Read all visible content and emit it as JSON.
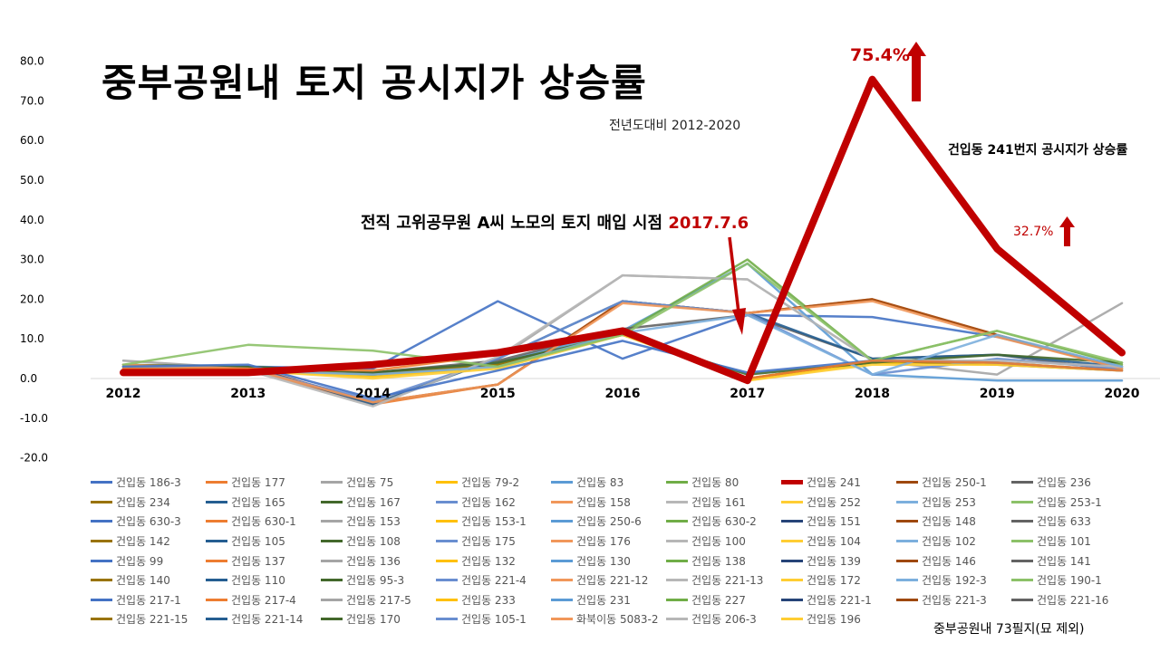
{
  "title": "중부공원내 토지 공시지가 상승률",
  "subtitle": "전년도대비 2012-2020",
  "annotations": {
    "series_241_label": "건입동 241번지 공시지가 상승률",
    "purchase_text": "전직 고위공무원 A씨 노모의 토지 매입 시점 ",
    "purchase_date": "2017.7.6",
    "peak_2018": "75.4%",
    "value_2019": "32.7%",
    "footnote": "중부공원내 73필지(묘 제외)"
  },
  "colors": {
    "highlight": "#c00000",
    "palette": [
      "#4472c4",
      "#ed7d31",
      "#a5a5a5",
      "#ffc000",
      "#5b9bd5",
      "#70ad47",
      "#264478",
      "#9e480e",
      "#636363",
      "#997300",
      "#255e91",
      "#43682b",
      "#698ed0",
      "#f1975a",
      "#b7b7b7",
      "#ffcd33",
      "#7cafdd",
      "#8cc168"
    ]
  },
  "chart_data": {
    "type": "line",
    "x": [
      "2012",
      "2013",
      "2014",
      "2015",
      "2016",
      "2017",
      "2018",
      "2019",
      "2020"
    ],
    "ylim": [
      -20,
      80
    ],
    "yticks": [
      "80.0",
      "70.0",
      "60.0",
      "50.0",
      "40.0",
      "30.0",
      "20.0",
      "10.0",
      "0.0",
      "-10.0",
      "-20.0"
    ],
    "ytick_values": [
      80,
      70,
      60,
      50,
      40,
      30,
      20,
      10,
      0,
      -10,
      -20
    ],
    "highlight_series": "건입동 241",
    "series": [
      {
        "name": "건입동 186-3",
        "values": [
          3.0,
          3.0,
          2.5,
          19.5,
          5.0,
          16.0,
          15.5,
          10.5,
          3.0
        ]
      },
      {
        "name": "건입동 177",
        "values": [
          3.5,
          2.5,
          -6.5,
          -1.5,
          19.5,
          16.5,
          20.0,
          11.0,
          2.5
        ]
      },
      {
        "name": "건입동 75",
        "values": [
          4.5,
          2.5,
          -6.0,
          5.0,
          26.0,
          25.0,
          4.5,
          1.0,
          19.0
        ]
      },
      {
        "name": "건입동 79-2",
        "values": [
          2.0,
          2.0,
          0.5,
          3.0,
          11.5,
          -0.5,
          4.0,
          4.0,
          2.0
        ]
      },
      {
        "name": "건입동 83",
        "values": [
          2.5,
          2.5,
          1.5,
          4.0,
          12.0,
          29.0,
          1.0,
          -0.5,
          -0.5
        ]
      },
      {
        "name": "건입동 80",
        "values": [
          3.5,
          2.5,
          1.0,
          3.5,
          11.5,
          30.0,
          4.5,
          12.0,
          3.5
        ]
      },
      {
        "name": "건입동 241",
        "values": [
          1.5,
          1.5,
          3.5,
          6.5,
          12.0,
          -0.5,
          75.4,
          32.7,
          6.5
        ]
      },
      {
        "name": "건입동 250-1",
        "values": [
          3.0,
          3.0,
          -6.0,
          -1.5,
          19.5,
          16.5,
          20.0,
          11.0,
          2.5
        ]
      },
      {
        "name": "건입동 236",
        "values": [
          3.0,
          2.5,
          1.5,
          4.5,
          12.5,
          16.0,
          5.0,
          6.0,
          2.0
        ]
      },
      {
        "name": "건입동 234",
        "values": [
          2.5,
          2.5,
          1.0,
          3.5,
          11.0,
          0.0,
          4.5,
          3.5,
          2.0
        ]
      },
      {
        "name": "건입동 165",
        "values": [
          3.0,
          3.0,
          -6.5,
          5.0,
          19.5,
          16.5,
          5.0,
          6.0,
          3.0
        ]
      },
      {
        "name": "건입동 167",
        "values": [
          3.5,
          3.0,
          1.5,
          4.0,
          11.0,
          1.0,
          4.0,
          6.0,
          4.0
        ]
      },
      {
        "name": "건입동 162",
        "values": [
          3.0,
          2.5,
          -5.5,
          5.0,
          19.5,
          16.5,
          1.0,
          5.0,
          2.5
        ]
      },
      {
        "name": "건입동 158",
        "values": [
          3.5,
          2.5,
          -6.0,
          -1.5,
          19.0,
          16.5,
          19.5,
          10.5,
          2.5
        ]
      },
      {
        "name": "건입동 161",
        "values": [
          3.0,
          2.0,
          -7.0,
          5.5,
          26.0,
          25.0,
          4.5,
          4.5,
          3.0
        ]
      },
      {
        "name": "건입동 252",
        "values": [
          2.0,
          2.0,
          0.0,
          2.5,
          11.0,
          -0.5,
          3.5,
          3.5,
          2.0
        ]
      },
      {
        "name": "건입동 253",
        "values": [
          2.5,
          2.0,
          1.0,
          3.0,
          11.5,
          16.0,
          1.0,
          11.0,
          3.0
        ]
      },
      {
        "name": "건입동 253-1",
        "values": [
          3.5,
          8.5,
          7.0,
          3.0,
          11.0,
          29.0,
          4.5,
          12.0,
          4.0
        ]
      },
      {
        "name": "건입동 630-3",
        "values": [
          3.0,
          3.5,
          -5.0,
          2.0,
          9.5,
          1.5,
          4.5,
          4.0,
          2.0
        ]
      },
      {
        "name": "건입동 630-1",
        "values": [
          2.5,
          2.5,
          2.0,
          6.0,
          11.5,
          0.0,
          4.5,
          4.0,
          2.0
        ]
      }
    ]
  },
  "legend": [
    "건입동 186-3",
    "건입동 177",
    "건입동 75",
    "건입동 79-2",
    "건입동 83",
    "건입동 80",
    "건입동 241",
    "건입동 250-1",
    "건입동 236",
    "건입동 234",
    "건입동 165",
    "건입동 167",
    "건입동 162",
    "건입동 158",
    "건입동 161",
    "건입동 252",
    "건입동 253",
    "건입동 253-1",
    "건입동 630-3",
    "건입동 630-1",
    "건입동 153",
    "건입동 153-1",
    "건입동 250-6",
    "건입동 630-2",
    "건입동 151",
    "건입동 148",
    "건입동 633",
    "건입동 142",
    "건입동 105",
    "건입동 108",
    "건입동 175",
    "건입동 176",
    "건입동 100",
    "건입동 104",
    "건입동 102",
    "건입동 101",
    "건입동 99",
    "건입동 137",
    "건입동 136",
    "건입동 132",
    "건입동 130",
    "건입동 138",
    "건입동 139",
    "건입동 146",
    "건입동 141",
    "건입동 140",
    "건입동 110",
    "건입동 95-3",
    "건입동 221-4",
    "건입동 221-12",
    "건입동 221-13",
    "건입동 172",
    "건입동 192-3",
    "건입동 190-1",
    "건입동 217-1",
    "건입동 217-4",
    "건입동 217-5",
    "건입동 233",
    "건입동 231",
    "건입동 227",
    "건입동 221-1",
    "건입동 221-3",
    "건입동 221-16",
    "건입동 221-15",
    "건입동 221-14",
    "건입동 170",
    "건입동 105-1",
    "화북이동 5083-2",
    "건입동 206-3",
    "건입동 196"
  ]
}
